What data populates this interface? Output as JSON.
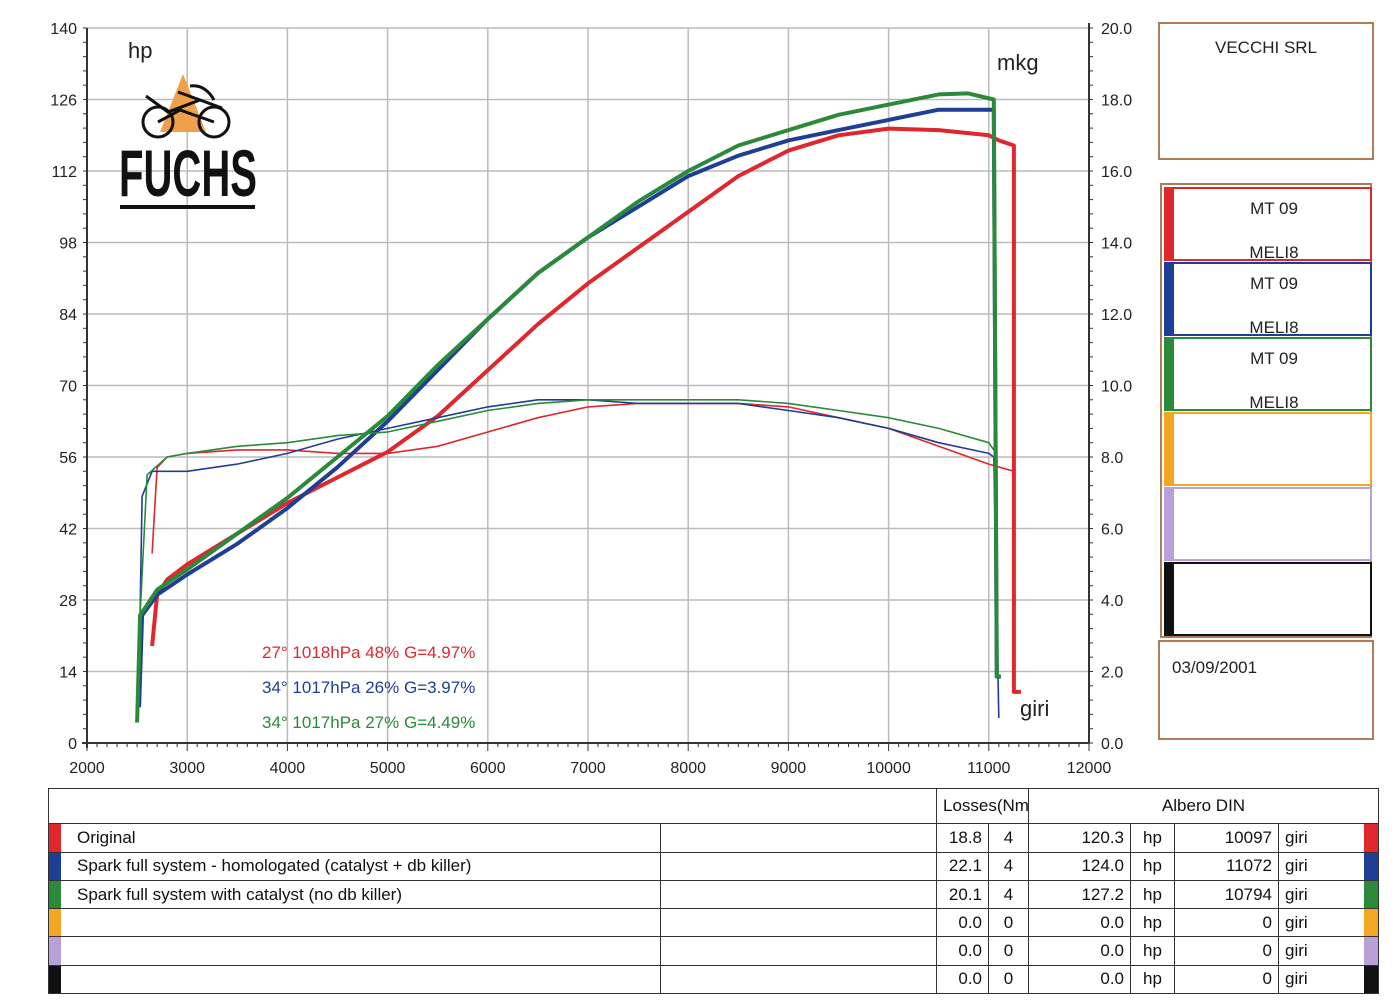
{
  "brand": {
    "logo_text": "FUCHS"
  },
  "chart_data": {
    "type": "line",
    "title": "",
    "xlabel": "giri",
    "ylabel_left": "hp",
    "ylabel_right": "mkg",
    "xlim": [
      2000,
      12000
    ],
    "ylim_left": [
      0,
      140
    ],
    "ylim_right": [
      0,
      20
    ],
    "x_ticks": [
      "2000",
      "3000",
      "4000",
      "5000",
      "6000",
      "7000",
      "8000",
      "9000",
      "10000",
      "11000",
      "12000"
    ],
    "y_left_ticks": [
      "0",
      "14",
      "28",
      "42",
      "56",
      "70",
      "84",
      "98",
      "112",
      "126",
      "140"
    ],
    "y_right_ticks": [
      "0.0",
      "2.0",
      "4.0",
      "6.0",
      "8.0",
      "10.0",
      "12.0",
      "14.0",
      "16.0",
      "18.0",
      "20.0"
    ],
    "grid": true,
    "series": [
      {
        "name": "Original",
        "color": "#e0262e",
        "power_hp": [
          [
            2650,
            19
          ],
          [
            2700,
            29
          ],
          [
            2800,
            32
          ],
          [
            3000,
            35
          ],
          [
            3500,
            41
          ],
          [
            4000,
            47
          ],
          [
            4500,
            52
          ],
          [
            5000,
            57
          ],
          [
            5500,
            64
          ],
          [
            6000,
            73
          ],
          [
            6500,
            82
          ],
          [
            7000,
            90
          ],
          [
            7500,
            97
          ],
          [
            8000,
            104
          ],
          [
            8500,
            111
          ],
          [
            9000,
            116
          ],
          [
            9500,
            119
          ],
          [
            10000,
            120.3
          ],
          [
            10500,
            120
          ],
          [
            11000,
            119
          ],
          [
            11100,
            118
          ],
          [
            11250,
            117
          ],
          [
            11250,
            10
          ],
          [
            11320,
            10
          ]
        ],
        "torque_mkg": [
          [
            2650,
            5.3
          ],
          [
            2700,
            7.7
          ],
          [
            2800,
            8.0
          ],
          [
            3000,
            8.1
          ],
          [
            3500,
            8.2
          ],
          [
            4000,
            8.2
          ],
          [
            4500,
            8.1
          ],
          [
            5000,
            8.1
          ],
          [
            5500,
            8.3
          ],
          [
            6000,
            8.7
          ],
          [
            6500,
            9.1
          ],
          [
            7000,
            9.4
          ],
          [
            7500,
            9.5
          ],
          [
            8000,
            9.5
          ],
          [
            8500,
            9.5
          ],
          [
            9000,
            9.4
          ],
          [
            9500,
            9.1
          ],
          [
            10000,
            8.8
          ],
          [
            10500,
            8.3
          ],
          [
            11000,
            7.8
          ],
          [
            11250,
            7.6
          ]
        ]
      },
      {
        "name": "Spark full system - homologated (catalyst + db killer)",
        "color": "#1f3e96",
        "power_hp": [
          [
            2520,
            7
          ],
          [
            2550,
            25
          ],
          [
            2700,
            29
          ],
          [
            3000,
            33
          ],
          [
            3500,
            39
          ],
          [
            4000,
            46
          ],
          [
            4500,
            54
          ],
          [
            5000,
            63
          ],
          [
            5500,
            73
          ],
          [
            6000,
            83
          ],
          [
            6500,
            92
          ],
          [
            7000,
            99
          ],
          [
            7500,
            105
          ],
          [
            8000,
            111
          ],
          [
            8500,
            115
          ],
          [
            9000,
            118
          ],
          [
            9500,
            120
          ],
          [
            10000,
            122
          ],
          [
            10500,
            124
          ],
          [
            11000,
            124.0
          ],
          [
            11050,
            124.0
          ],
          [
            11080,
            13
          ],
          [
            11120,
            13
          ]
        ],
        "torque_mkg": [
          [
            2520,
            2.0
          ],
          [
            2550,
            6.9
          ],
          [
            2650,
            7.6
          ],
          [
            3000,
            7.6
          ],
          [
            3500,
            7.8
          ],
          [
            4000,
            8.1
          ],
          [
            4500,
            8.5
          ],
          [
            5000,
            8.8
          ],
          [
            5500,
            9.1
          ],
          [
            6000,
            9.4
          ],
          [
            6500,
            9.6
          ],
          [
            7000,
            9.6
          ],
          [
            7500,
            9.5
          ],
          [
            8000,
            9.5
          ],
          [
            8500,
            9.5
          ],
          [
            9000,
            9.3
          ],
          [
            9500,
            9.1
          ],
          [
            10000,
            8.8
          ],
          [
            10500,
            8.4
          ],
          [
            11000,
            8.1
          ],
          [
            11050,
            8.0
          ],
          [
            11100,
            0.7
          ]
        ]
      },
      {
        "name": "Spark full system with catalyst (no db killer)",
        "color": "#2a8a3a",
        "power_hp": [
          [
            2500,
            4
          ],
          [
            2530,
            25
          ],
          [
            2700,
            30
          ],
          [
            3000,
            34
          ],
          [
            3500,
            41
          ],
          [
            4000,
            48
          ],
          [
            4500,
            56
          ],
          [
            5000,
            64
          ],
          [
            5500,
            74
          ],
          [
            6000,
            83
          ],
          [
            6500,
            92
          ],
          [
            7000,
            99
          ],
          [
            7500,
            106
          ],
          [
            8000,
            112
          ],
          [
            8500,
            117
          ],
          [
            9000,
            120
          ],
          [
            9500,
            123
          ],
          [
            10000,
            125
          ],
          [
            10500,
            127
          ],
          [
            10794,
            127.2
          ],
          [
            11050,
            126
          ],
          [
            11080,
            13
          ],
          [
            11120,
            13
          ]
        ],
        "torque_mkg": [
          [
            2500,
            0.8
          ],
          [
            2530,
            3.6
          ],
          [
            2600,
            7.5
          ],
          [
            2800,
            8.0
          ],
          [
            3000,
            8.1
          ],
          [
            3500,
            8.3
          ],
          [
            4000,
            8.4
          ],
          [
            4500,
            8.6
          ],
          [
            5000,
            8.7
          ],
          [
            5500,
            9.0
          ],
          [
            6000,
            9.3
          ],
          [
            6500,
            9.5
          ],
          [
            7000,
            9.6
          ],
          [
            7500,
            9.6
          ],
          [
            8000,
            9.6
          ],
          [
            8500,
            9.6
          ],
          [
            9000,
            9.5
          ],
          [
            9500,
            9.3
          ],
          [
            10000,
            9.1
          ],
          [
            10500,
            8.8
          ],
          [
            11000,
            8.4
          ],
          [
            11050,
            8.2
          ]
        ]
      }
    ],
    "conditions": [
      {
        "text": "27°  1018hPa  48%    G=4.97%",
        "color": "#e0262e"
      },
      {
        "text": "34°  1017hPa  26%    G=3.97%",
        "color": "#1f3e96"
      },
      {
        "text": "34°  1017hPa  27%    G=4.49%",
        "color": "#2a8a3a"
      }
    ]
  },
  "side_panel": {
    "company": "VECCHI SRL",
    "samples": [
      {
        "line1": "MT 09",
        "line2": "MELI8",
        "color": "#e0262e"
      },
      {
        "line1": "MT 09",
        "line2": "MELI8",
        "color": "#1f3e96"
      },
      {
        "line1": "MT 09",
        "line2": "MELI8",
        "color": "#2a8a3a"
      },
      {
        "line1": "",
        "line2": "",
        "color": "#f5a623"
      },
      {
        "line1": "",
        "line2": "",
        "color": "#b9a0d6"
      },
      {
        "line1": "",
        "line2": "",
        "color": "#111111"
      }
    ],
    "date": "03/09/2001"
  },
  "results_table": {
    "losses_header": "Losses(Nm)",
    "albero_header": "Albero DIN",
    "rows": [
      {
        "name": "Original",
        "color": "#e0262e",
        "loss": "18.8",
        "n": "4",
        "hp": "120.3",
        "hp_unit": "hp",
        "rpm": "10097",
        "rpm_unit": "giri"
      },
      {
        "name": "Spark full system - homologated (catalyst + db killer)",
        "color": "#1f3e96",
        "loss": "22.1",
        "n": "4",
        "hp": "124.0",
        "hp_unit": "hp",
        "rpm": "11072",
        "rpm_unit": "giri"
      },
      {
        "name": "Spark full system with catalyst (no db killer)",
        "color": "#2a8a3a",
        "loss": "20.1",
        "n": "4",
        "hp": "127.2",
        "hp_unit": "hp",
        "rpm": "10794",
        "rpm_unit": "giri"
      },
      {
        "name": "",
        "color": "#f5a623",
        "loss": "0.0",
        "n": "0",
        "hp": "0.0",
        "hp_unit": "hp",
        "rpm": "0",
        "rpm_unit": "giri"
      },
      {
        "name": "",
        "color": "#b9a0d6",
        "loss": "0.0",
        "n": "0",
        "hp": "0.0",
        "hp_unit": "hp",
        "rpm": "0",
        "rpm_unit": "giri"
      },
      {
        "name": "",
        "color": "#111111",
        "loss": "0.0",
        "n": "0",
        "hp": "0.0",
        "hp_unit": "hp",
        "rpm": "0",
        "rpm_unit": "giri"
      }
    ]
  }
}
